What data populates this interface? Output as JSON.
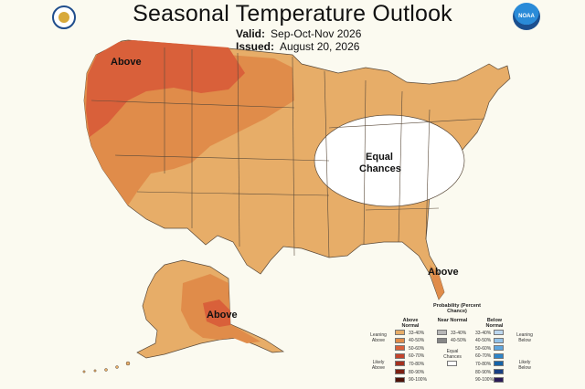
{
  "title": "Seasonal Temperature Outlook",
  "valid_label": "Valid:",
  "valid_value": "Sep-Oct-Nov 2026",
  "issued_label": "Issued:",
  "issued_value": "August 20, 2026",
  "logos": {
    "left": "Department of Commerce seal",
    "right": "NOAA"
  },
  "colors": {
    "above_33_40": "#e7ad68",
    "above_40_50": "#e08c4a",
    "above_50_60": "#d9603a",
    "above_60_70": "#c4442c",
    "above_70_80": "#a5301f",
    "above_80_90": "#7c2012",
    "above_90_100": "#4e1208",
    "near_33_40": "#b7b7b7",
    "near_40_50": "#878787",
    "below_33_40": "#bcd7ee",
    "below_40_50": "#93c2e8",
    "below_50_60": "#5ea6de",
    "below_60_70": "#2e85c9",
    "below_70_80": "#1563a8",
    "below_80_90": "#193f82",
    "below_90_100": "#2a1b56",
    "equal_chances": "#ffffff",
    "background": "#fbfaf0"
  },
  "map_labels": {
    "above_northwest": "Above",
    "equal_chances": "Equal Chances",
    "above_florida": "Above",
    "above_alaska": "Above"
  },
  "legend": {
    "title": "Probability (Percent Chance)",
    "above_header": "Above Normal",
    "near_header": "Near Normal",
    "below_header": "Below Normal",
    "leaning_above": "Leaning Above",
    "likely_above": "Likely Above",
    "leaning_below": "Leaning Below",
    "likely_below": "Likely Below",
    "equal_chances": "Equal Chances",
    "above_ranges": [
      "33-40%",
      "40-50%",
      "50-60%",
      "60-70%",
      "70-80%",
      "80-90%",
      "90-100%"
    ],
    "near_ranges": [
      "33-40%",
      "40-50%"
    ],
    "below_ranges": [
      "33-40%",
      "40-50%",
      "50-60%",
      "60-70%",
      "70-80%",
      "80-90%",
      "90-100%"
    ]
  }
}
